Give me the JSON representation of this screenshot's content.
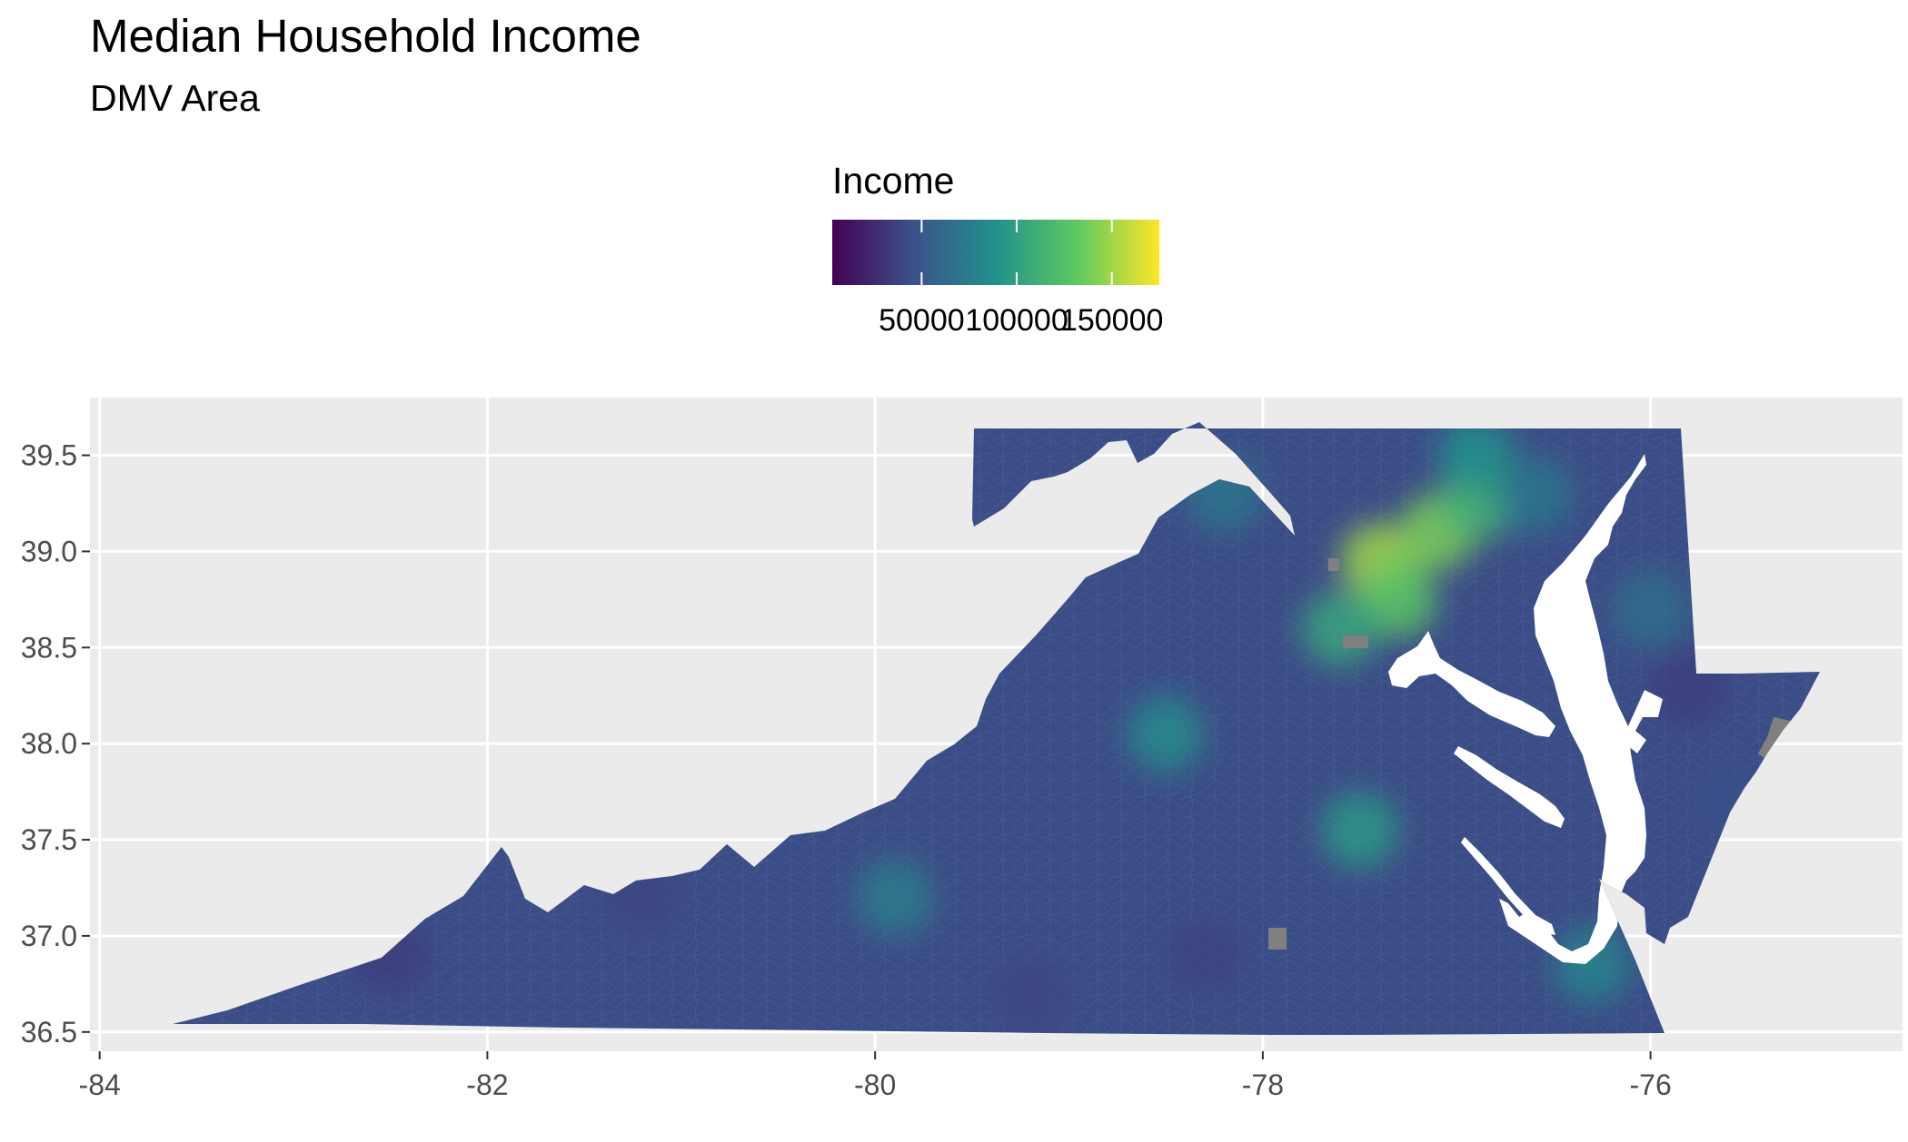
{
  "title": "Median Household Income",
  "subtitle": "DMV Area",
  "legend": {
    "title": "Income",
    "breaks": [
      50000,
      100000,
      150000
    ],
    "labels": [
      "50000",
      "100000",
      "150000"
    ],
    "range": [
      3000,
      175000
    ],
    "colors": [
      "#440154",
      "#3b528b",
      "#21918c",
      "#5ec962",
      "#fde725"
    ]
  },
  "chart_data": {
    "type": "choropleth",
    "title": "Median Household Income",
    "subtitle": "DMV Area",
    "xlim": [
      -84.05,
      -74.7
    ],
    "ylim": [
      36.4,
      39.8
    ],
    "x_ticks": [
      -84,
      -82,
      -80,
      -78,
      -76
    ],
    "x_tick_labels": [
      "-84",
      "-82",
      "-80",
      "-78",
      "-76"
    ],
    "y_ticks": [
      36.5,
      37.0,
      37.5,
      38.0,
      38.5,
      39.0,
      39.5
    ],
    "y_tick_labels": [
      "36.5",
      "37.0",
      "37.5",
      "38.0",
      "38.5",
      "39.0",
      "39.5"
    ],
    "grid": true,
    "legend_position": "top",
    "fill_variable": "Income",
    "na_color": "#808080",
    "colors": {
      "panel": "#ebebeb",
      "gridline": "#ffffff",
      "base_fill": "#3b4d86",
      "water": "#ffffff"
    },
    "regions": [
      {
        "lon": -77.4,
        "lat": 38.95,
        "income": 150000
      },
      {
        "lon": -77.1,
        "lat": 39.1,
        "income": 140000
      },
      {
        "lon": -77.3,
        "lat": 38.75,
        "income": 130000
      },
      {
        "lon": -76.9,
        "lat": 39.25,
        "income": 115000
      },
      {
        "lon": -77.6,
        "lat": 38.6,
        "income": 105000
      },
      {
        "lon": -77.5,
        "lat": 37.55,
        "income": 95000
      },
      {
        "lon": -76.3,
        "lat": 36.85,
        "income": 80000
      },
      {
        "lon": -78.5,
        "lat": 38.05,
        "income": 85000
      },
      {
        "lon": -79.9,
        "lat": 37.2,
        "income": 75000
      },
      {
        "lon": -76.9,
        "lat": 39.5,
        "income": 90000
      },
      {
        "lon": -76.6,
        "lat": 39.3,
        "income": 70000
      },
      {
        "lon": -78.2,
        "lat": 39.3,
        "income": 70000
      },
      {
        "lon": -76.0,
        "lat": 38.7,
        "income": 65000
      },
      {
        "lon": -75.6,
        "lat": 37.7,
        "income": 45000
      },
      {
        "lon": -75.8,
        "lat": 38.3,
        "income": 35000
      },
      {
        "lon": -82.5,
        "lat": 36.9,
        "income": 35000
      },
      {
        "lon": -81.2,
        "lat": 37.2,
        "income": 40000
      },
      {
        "lon": -80.8,
        "lat": 37.8,
        "income": 40000
      },
      {
        "lon": -79.2,
        "lat": 36.7,
        "income": 40000
      },
      {
        "lon": -78.3,
        "lat": 36.9,
        "income": 38000
      }
    ]
  }
}
